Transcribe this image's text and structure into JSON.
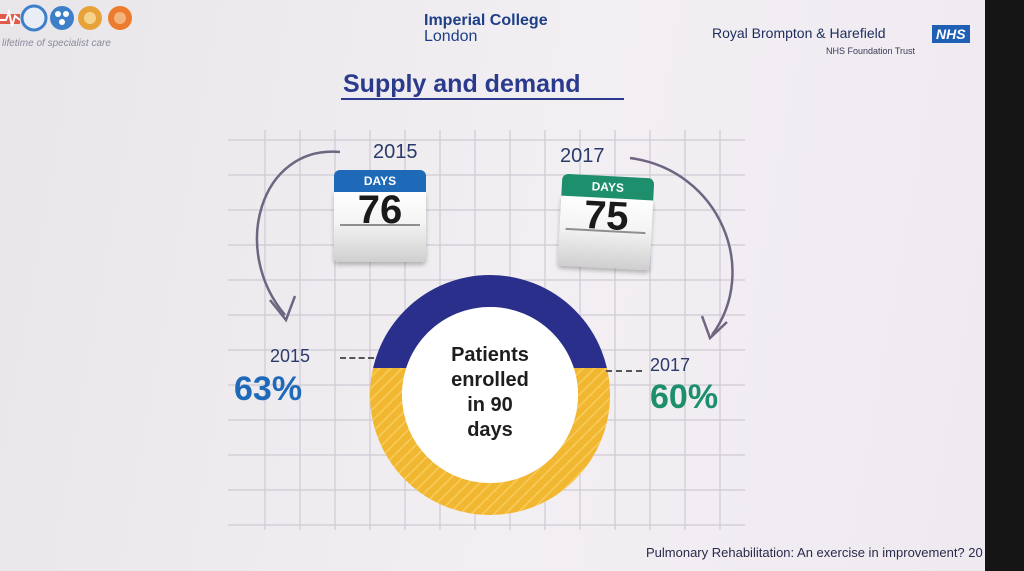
{
  "header": {
    "tagline": "lifetime of specialist care",
    "imperial_line1": "Imperial College",
    "imperial_line2": "London",
    "trust_name": "Royal Brompton & Harefield",
    "nhs_logo": "NHS",
    "trust_sub": "NHS Foundation Trust"
  },
  "title": "Supply and demand",
  "calendars": [
    {
      "year": "2015",
      "tab": "DAYS",
      "days": "76",
      "tab_color": "#1f6ab8"
    },
    {
      "year": "2017",
      "tab": "DAYS",
      "days": "75",
      "tab_color": "#1d8f6c"
    }
  ],
  "ring": {
    "label": "Patients enrolled in 90 days",
    "label_lines": [
      "Patients",
      "enrolled",
      "in 90",
      "days"
    ],
    "top_color": "#2b2f8c",
    "bottom_color": "#f2b731"
  },
  "stats": [
    {
      "year": "2015",
      "percent": "63%",
      "color": "#1f6ab8"
    },
    {
      "year": "2017",
      "percent": "60%",
      "color": "#1d8f6c"
    }
  ],
  "footer": "Pulmonary Rehabilitation: An exercise in improvement? 20"
}
